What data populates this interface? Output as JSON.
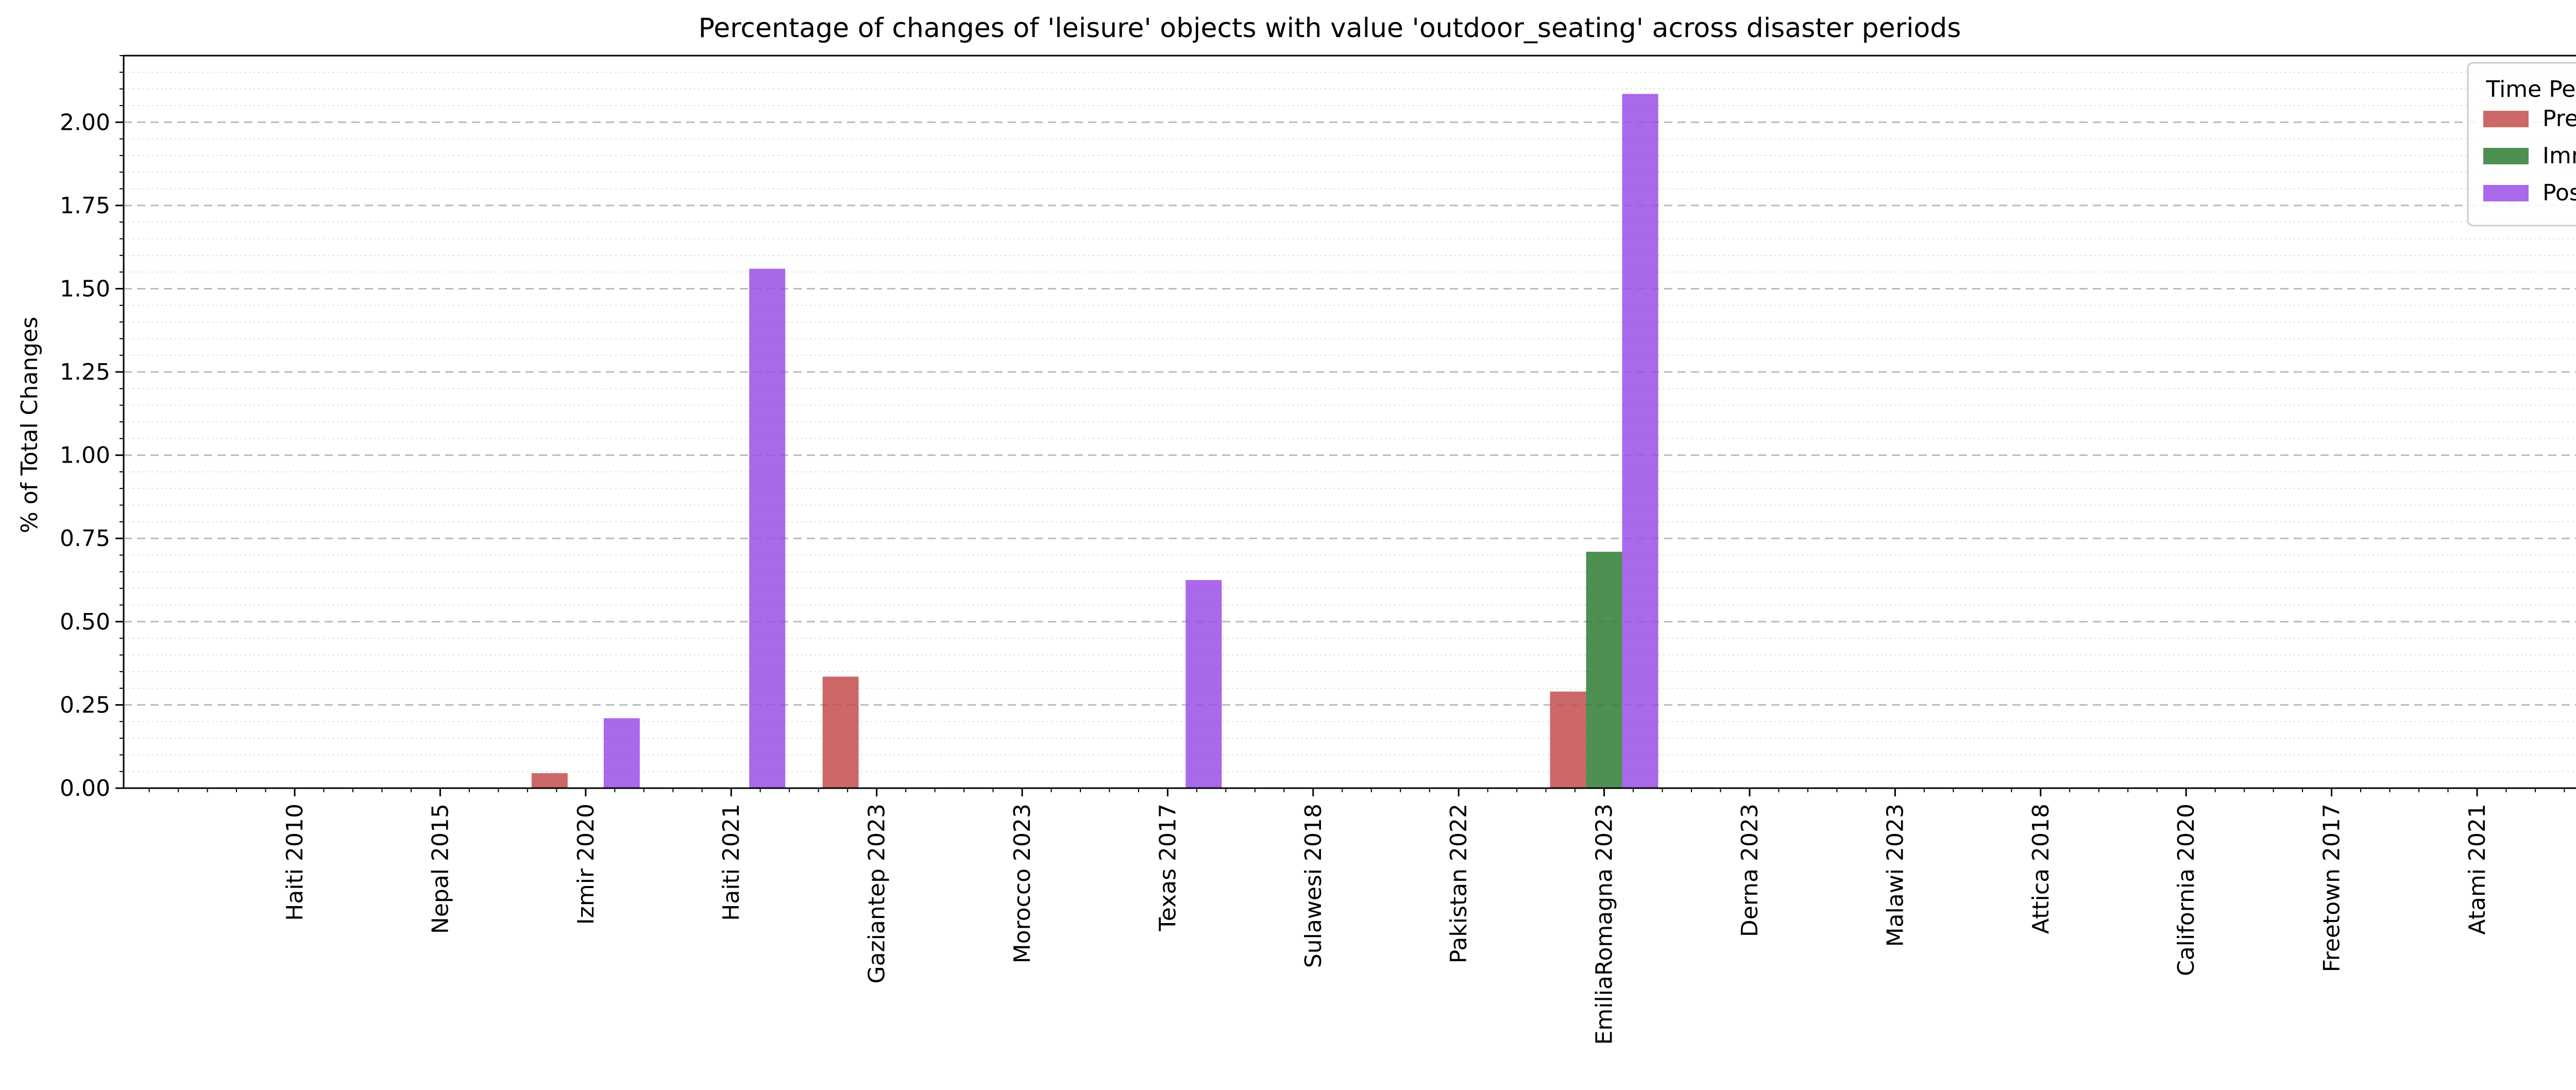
{
  "chart_data": {
    "type": "bar",
    "title": "Percentage of changes of 'leisure' objects with value 'outdoor_seating' across disaster periods",
    "xlabel": "",
    "ylabel": "% of Total Changes",
    "ylim": [
      0,
      2.2
    ],
    "yticks": [
      "0.00",
      "0.25",
      "0.50",
      "0.75",
      "1.00",
      "1.25",
      "1.50",
      "1.75",
      "2.00"
    ],
    "grid": "horizontal dashed major, dotted minor",
    "legend": {
      "title": "Time Period",
      "placement": "top-right"
    },
    "categories": [
      "Haiti 2010",
      "Nepal 2015",
      "Izmir 2020",
      "Haiti 2021",
      "Gaziantep 2023",
      "Morocco 2023",
      "Texas 2017",
      "Sulawesi 2018",
      "Pakistan 2022",
      "EmiliaRomagna 2023",
      "Derna 2023",
      "Malawi 2023",
      "Attica 2018",
      "California 2020",
      "Freetown 2017",
      "Atami 2021"
    ],
    "series": [
      {
        "name": "Pre",
        "color": "#c44e4e",
        "values": [
          0,
          0,
          0.045,
          0,
          0.335,
          0,
          0,
          0,
          0,
          0.29,
          0,
          0,
          0,
          0,
          0,
          0
        ]
      },
      {
        "name": "Imm",
        "color": "#2e7d32",
        "values": [
          0,
          0,
          0,
          0,
          0,
          0,
          0,
          0,
          0,
          0.71,
          0,
          0,
          0,
          0,
          0,
          0
        ]
      },
      {
        "name": "Post",
        "color": "#9b4de8",
        "values": [
          0,
          0,
          0.21,
          1.56,
          0,
          0,
          0.625,
          0,
          0,
          2.085,
          0,
          0,
          0,
          0,
          0,
          0
        ]
      }
    ]
  }
}
